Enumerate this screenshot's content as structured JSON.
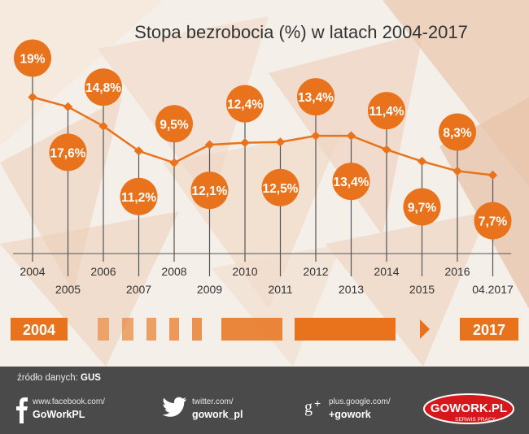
{
  "chart_data": {
    "type": "line",
    "title": "Stopa bezrobocia (%) w latach 2004-2017",
    "categories": [
      "2004",
      "2005",
      "2006",
      "2007",
      "2008",
      "2009",
      "2010",
      "2011",
      "2012",
      "2013",
      "2014",
      "2015",
      "2016",
      "04.2017"
    ],
    "values": [
      19.0,
      17.6,
      14.8,
      11.2,
      9.5,
      12.1,
      12.4,
      12.5,
      13.4,
      13.4,
      11.4,
      9.7,
      8.3,
      7.7
    ],
    "labels": [
      "19%",
      "17,6%",
      "14,8%",
      "11,2%",
      "9,5%",
      "12,1%",
      "12,4%",
      "12,5%",
      "13,4%",
      "13,4%",
      "11,4%",
      "9,7%",
      "8,3%",
      "7,7%"
    ],
    "xlabel": "",
    "ylabel": "",
    "grid": false,
    "legend": "none"
  },
  "timeline": {
    "start_label": "2004",
    "end_label": "2017"
  },
  "colors": {
    "accent": "#e8731c",
    "text": "#333333",
    "footer": "#4a4a4a",
    "brand_red": "#d6171c"
  },
  "footer": {
    "source_prefix": "źródło danych:",
    "source_value": "GUS",
    "facebook": {
      "line1": "www.facebook.com/",
      "line2": "GoWorkPL",
      "icon": "facebook-icon"
    },
    "twitter": {
      "line1": "twitter.com/",
      "line2": "gowork_pl",
      "icon": "twitter-icon"
    },
    "google": {
      "line1": "plus.google.com/",
      "line2": "+gowork",
      "icon": "google-plus-icon"
    },
    "logo": {
      "text": "GOWORK.PL",
      "subtitle": "SERWIS PRACY"
    }
  }
}
